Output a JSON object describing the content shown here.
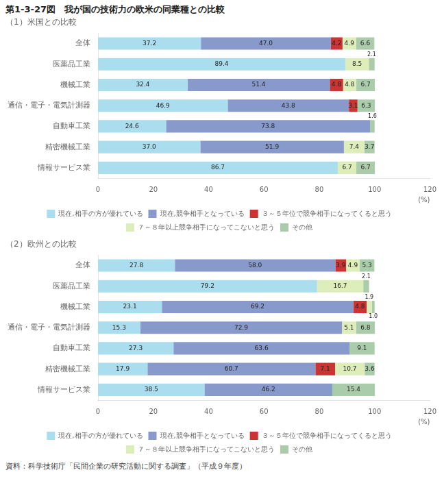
{
  "chart_data": [
    {
      "type": "bar",
      "orientation": "horizontal",
      "stacked": true,
      "title": "第1-3-27図　我が国の技術力の欧米の同業種との比較",
      "subtitle": "（1）米国との比較",
      "xlabel": "(%)",
      "categories": [
        "全体",
        "医薬品工業",
        "機械工業",
        "通信・電子・電気計測器",
        "自動車工業",
        "精密機械工業",
        "情報サービス業"
      ],
      "series": [
        {
          "name": "現在,相手の方が優れている",
          "color": "#aaddee",
          "values": [
            37.2,
            89.4,
            32.4,
            46.9,
            24.6,
            37.0,
            86.7
          ],
          "value_labels": [
            "37.2",
            "89.4",
            "32.4",
            "46.9",
            "24.6",
            "37.0",
            "86.7"
          ]
        },
        {
          "name": "現在,競争相手となっている",
          "color": "#8899cc",
          "values": [
            47.0,
            0.0,
            51.4,
            43.8,
            73.8,
            51.9,
            0.0
          ],
          "value_labels": [
            "47.0",
            null,
            "51.4",
            "43.8",
            "73.8",
            "51.9",
            null
          ]
        },
        {
          "name": "３～５年位で競争相手になってくると思う",
          "color": "#cc3333",
          "values": [
            4.2,
            0.0,
            4.8,
            3.1,
            0.0,
            0.0,
            0.0
          ],
          "value_labels": [
            "4.2",
            null,
            "4.8",
            "3.1",
            null,
            null,
            null
          ]
        },
        {
          "name": "７～８年以上競争相手になってこないと思う",
          "color": "#ddeebb",
          "values": [
            4.9,
            8.5,
            4.8,
            0.0,
            0.0,
            7.4,
            6.7
          ],
          "value_labels": [
            "4.9",
            "8.5",
            "4.8",
            null,
            null,
            "7.4",
            "6.7"
          ]
        },
        {
          "name": "その他",
          "color": "#aaccaa",
          "values": [
            6.6,
            2.1,
            6.7,
            6.3,
            1.6,
            3.7,
            6.7
          ],
          "value_labels": [
            "6.6",
            "2.1",
            "6.7",
            "6.3",
            "1.6",
            "3.7",
            "6.7"
          ]
        }
      ],
      "xlim": [
        0,
        120
      ],
      "xticks": [
        0,
        20,
        40,
        60,
        80,
        100,
        120
      ],
      "grid": false,
      "legend": "bottom",
      "data_labels": true
    },
    {
      "type": "bar",
      "orientation": "horizontal",
      "stacked": true,
      "subtitle": "（2）欧州との比較",
      "xlabel": "(%)",
      "source": "資料：科学技術庁「民間企業の研究活動に関する調査」（平成９年度）",
      "categories": [
        "全体",
        "医薬品工業",
        "機械工業",
        "通信・電子・電気計測器",
        "自動車工業",
        "精密機械工業",
        "情報サービス業"
      ],
      "series": [
        {
          "name": "現在,相手の方が優れている",
          "color": "#aaddee",
          "values": [
            27.8,
            79.2,
            23.1,
            15.3,
            27.3,
            17.9,
            38.5
          ],
          "value_labels": [
            "27.8",
            "79.2",
            "23.1",
            "15.3",
            "27.3",
            "17.9",
            "38.5"
          ]
        },
        {
          "name": "現在,競争相手となっている",
          "color": "#8899cc",
          "values": [
            58.0,
            0.0,
            69.2,
            72.9,
            63.6,
            60.7,
            46.2
          ],
          "value_labels": [
            "58.0",
            null,
            "69.2",
            "72.9",
            "63.6",
            "60.7",
            "46.2"
          ]
        },
        {
          "name": "３～５年位で競争相手になってくると思う",
          "color": "#cc3333",
          "values": [
            3.9,
            0.0,
            4.8,
            0.0,
            0.0,
            7.1,
            0.0
          ],
          "value_labels": [
            "3.9",
            null,
            "4.8",
            null,
            null,
            "7.1",
            null
          ]
        },
        {
          "name": "７～８年以上競争相手になってこないと思う",
          "color": "#ddeebb",
          "values": [
            4.9,
            16.7,
            1.9,
            5.1,
            0.0,
            10.7,
            0.0
          ],
          "value_labels": [
            "4.9",
            "16.7",
            "1.9",
            "5.1",
            null,
            "10.7",
            null
          ]
        },
        {
          "name": "その他",
          "color": "#aaccaa",
          "values": [
            5.3,
            2.1,
            1.0,
            6.8,
            9.1,
            3.6,
            15.4
          ],
          "value_labels": [
            "5.3",
            "2.1",
            "1.0",
            "6.8",
            "9.1",
            "3.6",
            "15.4"
          ]
        }
      ],
      "xlim": [
        0,
        120
      ],
      "xticks": [
        0,
        20,
        40,
        60,
        80,
        100,
        120
      ],
      "grid": false,
      "legend": "bottom",
      "data_labels": true
    }
  ]
}
